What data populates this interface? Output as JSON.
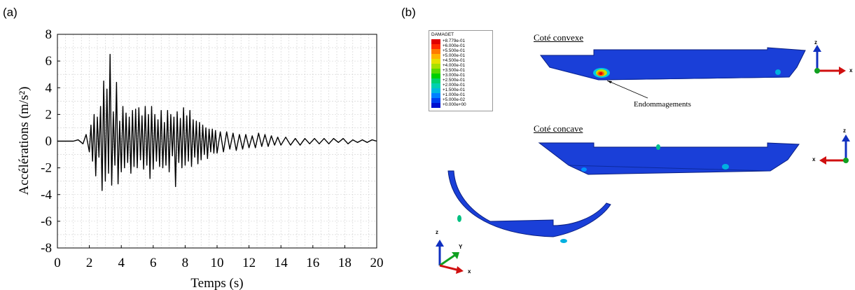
{
  "panels": {
    "a": "(a)",
    "b": "(b)"
  },
  "chart_data": {
    "type": "line",
    "title": "",
    "xlabel": "Temps (s)",
    "ylabel": "Accélérations (m/s²)",
    "xlim": [
      0,
      20
    ],
    "ylim": [
      -8,
      8
    ],
    "x_ticks": [
      "0",
      "2",
      "4",
      "6",
      "8",
      "10",
      "12",
      "14",
      "16",
      "18",
      "20"
    ],
    "y_ticks": [
      "8",
      "6",
      "4",
      "2",
      "0",
      "-2",
      "-4",
      "-6",
      "-8"
    ],
    "grid": true,
    "series": [
      {
        "color": "#000000",
        "x": [
          0,
          1.0,
          1.3,
          1.6,
          1.8,
          2.0,
          2.1,
          2.2,
          2.3,
          2.4,
          2.5,
          2.6,
          2.7,
          2.8,
          2.9,
          3.0,
          3.1,
          3.2,
          3.3,
          3.4,
          3.5,
          3.6,
          3.7,
          3.8,
          3.9,
          4.0,
          4.1,
          4.2,
          4.3,
          4.4,
          4.5,
          4.6,
          4.7,
          4.8,
          4.9,
          5.0,
          5.1,
          5.2,
          5.3,
          5.4,
          5.5,
          5.6,
          5.7,
          5.8,
          5.9,
          6.0,
          6.1,
          6.2,
          6.3,
          6.4,
          6.5,
          6.6,
          6.7,
          6.8,
          6.9,
          7.0,
          7.1,
          7.2,
          7.3,
          7.4,
          7.5,
          7.6,
          7.7,
          7.8,
          7.9,
          8.0,
          8.1,
          8.2,
          8.3,
          8.4,
          8.5,
          8.6,
          8.7,
          8.8,
          8.9,
          9.0,
          9.1,
          9.2,
          9.3,
          9.4,
          9.5,
          9.6,
          9.7,
          9.8,
          9.9,
          10.0,
          10.2,
          10.4,
          10.6,
          10.8,
          11.0,
          11.2,
          11.4,
          11.6,
          11.8,
          12.0,
          12.2,
          12.4,
          12.6,
          12.8,
          13.0,
          13.2,
          13.4,
          13.6,
          13.8,
          14.0,
          14.3,
          14.6,
          14.9,
          15.2,
          15.5,
          15.8,
          16.1,
          16.4,
          16.7,
          17.0,
          17.3,
          17.6,
          17.9,
          18.2,
          18.5,
          18.8,
          19.1,
          19.4,
          19.7,
          20.0
        ],
        "y": [
          0,
          0,
          0.1,
          -0.2,
          0.5,
          -0.8,
          1.2,
          -1.5,
          2.0,
          -2.6,
          1.8,
          -1.2,
          2.6,
          -3.7,
          4.5,
          -3.0,
          3.9,
          -2.4,
          6.5,
          -3.3,
          2.2,
          -1.8,
          4.4,
          -3.2,
          1.5,
          -2.3,
          2.6,
          -2.0,
          2.1,
          -1.6,
          1.8,
          -2.4,
          2.3,
          -1.9,
          2.4,
          -2.0,
          2.5,
          -1.4,
          1.9,
          -2.1,
          2.6,
          -1.8,
          2.0,
          -2.8,
          2.6,
          -2.1,
          2.0,
          -1.5,
          1.6,
          -1.9,
          2.3,
          -2.0,
          1.4,
          -1.8,
          2.3,
          -2.3,
          2.0,
          -1.1,
          1.8,
          -3.4,
          2.2,
          -1.6,
          1.7,
          -2.0,
          2.5,
          -1.8,
          1.9,
          -1.5,
          2.3,
          -1.9,
          1.6,
          -1.2,
          1.5,
          -1.7,
          1.4,
          -1.4,
          1.2,
          -1.0,
          1.0,
          -1.3,
          0.9,
          -0.8,
          0.9,
          -0.9,
          0.8,
          -0.9,
          0.7,
          -0.8,
          0.7,
          -0.6,
          0.6,
          -0.7,
          0.5,
          -0.6,
          0.5,
          -0.5,
          0.4,
          -0.5,
          0.6,
          -0.4,
          0.5,
          -0.4,
          0.4,
          -0.3,
          0.3,
          -0.3,
          0.3,
          -0.3,
          0.2,
          -0.3,
          0.2,
          -0.2,
          0.2,
          -0.2,
          0.2,
          -0.2,
          0.2,
          -0.1,
          0.2,
          -0.2,
          0.1,
          -0.1,
          0.1,
          -0.1,
          0.1,
          0
        ]
      }
    ]
  },
  "legend": {
    "title": "DAMAGET",
    "entries": [
      {
        "value": "+8.779e-01",
        "color": "#e00000"
      },
      {
        "value": "+6.000e-01",
        "color": "#ff2a00"
      },
      {
        "value": "+5.500e-01",
        "color": "#ff7a00"
      },
      {
        "value": "+5.000e-01",
        "color": "#ffb400"
      },
      {
        "value": "+4.500e-01",
        "color": "#e6e000"
      },
      {
        "value": "+4.000e-01",
        "color": "#a8e000"
      },
      {
        "value": "+3.500e-01",
        "color": "#5ad800"
      },
      {
        "value": "+3.000e-01",
        "color": "#00d000"
      },
      {
        "value": "+2.500e-01",
        "color": "#00d070"
      },
      {
        "value": "+2.000e-01",
        "color": "#00d0b0"
      },
      {
        "value": "+1.500e-01",
        "color": "#00b8e0"
      },
      {
        "value": "+1.000e-01",
        "color": "#0080ff"
      },
      {
        "value": "+5.000e-02",
        "color": "#0040f0"
      },
      {
        "value": "+0.000e+00",
        "color": "#0010d0"
      }
    ]
  },
  "views": {
    "convexe_title": "Coté convexe",
    "concave_title": "Coté concave",
    "annotation": "Endommagements"
  },
  "axes_triad": {
    "top": {
      "z": "z",
      "x": "x"
    },
    "middle": {
      "z": "z",
      "x": "x"
    },
    "bottom": {
      "z": "z",
      "y": "Y",
      "x": "x"
    }
  },
  "colors": {
    "model_blue": "#1a3fd8",
    "axis_red": "#d01010",
    "axis_green": "#10a020",
    "axis_blue": "#1030c0"
  }
}
